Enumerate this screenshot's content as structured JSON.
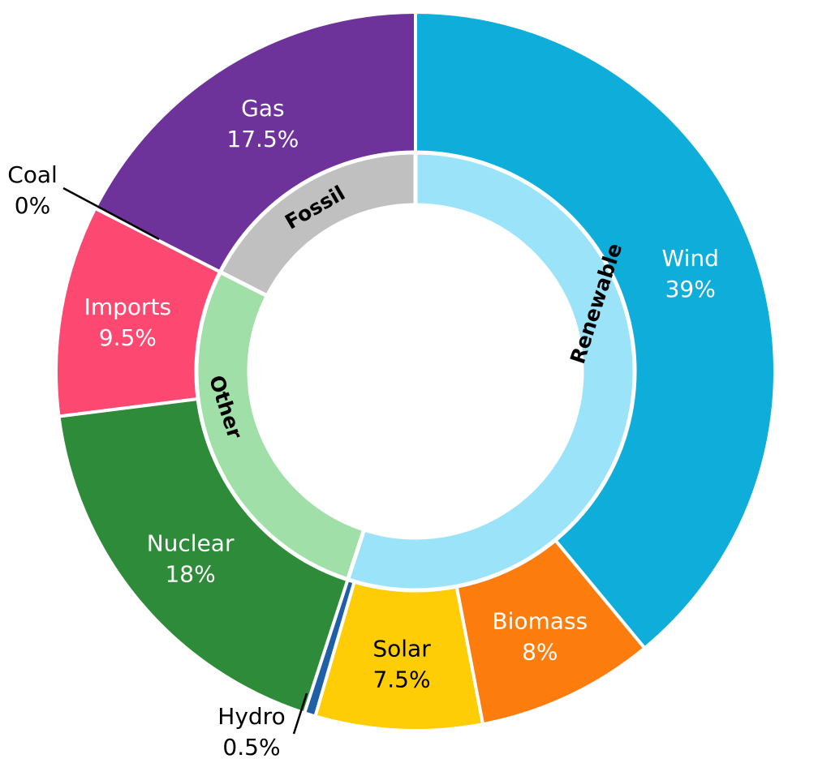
{
  "chart_data": {
    "type": "donut",
    "title": "",
    "outer": [
      {
        "label": "Wind",
        "value": 39,
        "value_label": "39%",
        "color": "#0fadd9",
        "text_color": "#ffffff"
      },
      {
        "label": "Biomass",
        "value": 8,
        "value_label": "8%",
        "color": "#fc7d0e",
        "text_color": "#ffffff"
      },
      {
        "label": "Solar",
        "value": 7.5,
        "value_label": "7.5%",
        "color": "#fecd06",
        "text_color": "#000000"
      },
      {
        "label": "Hydro",
        "value": 0.5,
        "value_label": "0.5%",
        "color": "#1f5fa8",
        "text_color": "#000000"
      },
      {
        "label": "Nuclear",
        "value": 18,
        "value_label": "18%",
        "color": "#2e8b3a",
        "text_color": "#ffffff"
      },
      {
        "label": "Imports",
        "value": 9.5,
        "value_label": "9.5%",
        "color": "#fd4871",
        "text_color": "#ffffff"
      },
      {
        "label": "Coal",
        "value": 0,
        "value_label": "0%",
        "color": "#333333",
        "text_color": "#000000"
      },
      {
        "label": "Gas",
        "value": 17.5,
        "value_label": "17.5%",
        "color": "#6e329b",
        "text_color": "#ffffff"
      }
    ],
    "inner": [
      {
        "label": "Renewable",
        "value": 55,
        "color": "#9ae3f8"
      },
      {
        "label": "Other",
        "value": 27.5,
        "color": "#a1dfa8"
      },
      {
        "label": "Fossil",
        "value": 17.5,
        "color": "#c0c0c0"
      }
    ]
  }
}
